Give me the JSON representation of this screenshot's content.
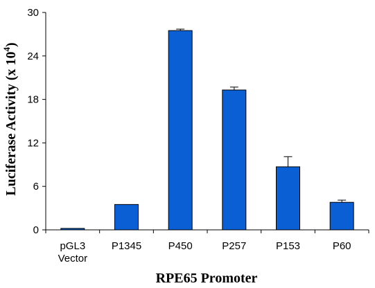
{
  "chart_data": {
    "type": "bar",
    "title": "",
    "xlabel": "RPE65 Promoter",
    "ylabel_main": "Luciferase Activity (x 10",
    "ylabel_sup": "4",
    "ylabel_end": ")",
    "categories": [
      [
        "pGL3",
        "Vector"
      ],
      [
        "P1345"
      ],
      [
        "P450"
      ],
      [
        "P257"
      ],
      [
        "P153"
      ],
      [
        "P60"
      ]
    ],
    "values": [
      0.2,
      3.5,
      27.5,
      19.3,
      8.7,
      3.8
    ],
    "errors": [
      0.0,
      0.0,
      0.2,
      0.4,
      1.4,
      0.3
    ],
    "ylim": [
      0,
      30
    ],
    "yticks": [
      0,
      6,
      12,
      18,
      24,
      30
    ],
    "grid": false,
    "bar_color": "#0A5FD4"
  }
}
